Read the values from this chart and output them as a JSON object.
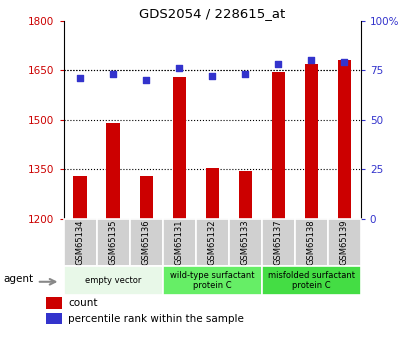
{
  "title": "GDS2054 / 228615_at",
  "samples": [
    "GSM65134",
    "GSM65135",
    "GSM65136",
    "GSM65131",
    "GSM65132",
    "GSM65133",
    "GSM65137",
    "GSM65138",
    "GSM65139"
  ],
  "counts": [
    1330,
    1490,
    1330,
    1630,
    1355,
    1345,
    1645,
    1670,
    1680
  ],
  "percentiles": [
    71,
    73,
    70,
    76,
    72,
    73,
    78,
    80,
    79
  ],
  "ylim_left": [
    1200,
    1800
  ],
  "ylim_right": [
    0,
    100
  ],
  "yticks_left": [
    1200,
    1350,
    1500,
    1650,
    1800
  ],
  "yticks_right": [
    0,
    25,
    50,
    75,
    100
  ],
  "bar_color": "#cc0000",
  "dot_color": "#3333cc",
  "groups": [
    {
      "label": "empty vector",
      "indices": [
        0,
        1,
        2
      ],
      "color": "#e8f8e8"
    },
    {
      "label": "wild-type surfactant\nprotein C",
      "indices": [
        3,
        4,
        5
      ],
      "color": "#66ee66"
    },
    {
      "label": "misfolded surfactant\nprotein C",
      "indices": [
        6,
        7,
        8
      ],
      "color": "#44dd44"
    }
  ],
  "agent_label": "agent",
  "legend_count_label": "count",
  "legend_pct_label": "percentile rank within the sample",
  "tick_color_left": "#cc0000",
  "tick_color_right": "#3333cc",
  "bar_width": 0.4,
  "bar_bottom": 1200,
  "sample_bg_color": "#d0d0d0",
  "sample_border_color": "#ffffff",
  "fig_bg": "#ffffff"
}
